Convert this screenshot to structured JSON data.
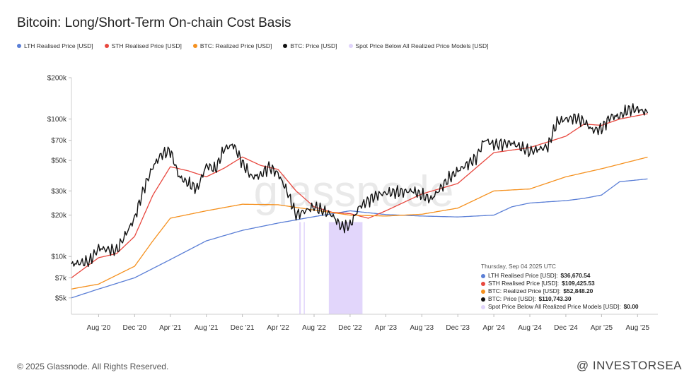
{
  "title": "Bitcoin: Long/Short-Term On-chain Cost Basis",
  "footer": "© 2025 Glassnode. All Rights Reserved.",
  "source_mark": "@ INVESTORSEA",
  "watermark": "glassnode",
  "colors": {
    "lth": "#5b7fd6",
    "sth": "#e8483f",
    "realized": "#f5911f",
    "price": "#111111",
    "spot_below": "#e0d4fb"
  },
  "tooltip": {
    "date": "Thursday, Sep 04 2025 UTC",
    "rows": [
      {
        "label": "LTH Realised Price [USD]:",
        "value": "$36,670.54",
        "color": "#5b7fd6"
      },
      {
        "label": "STH Realised Price [USD]:",
        "value": "$109,425.53",
        "color": "#e8483f"
      },
      {
        "label": "BTC: Realized Price [USD]:",
        "value": "$52,848.20",
        "color": "#f5911f"
      },
      {
        "label": "BTC: Price [USD]:",
        "value": "$110,743.30",
        "color": "#111111"
      },
      {
        "label": "Spot Price Below All Realized Price Models [USD]:",
        "value": "$0.00",
        "color": "#e0d4fb"
      }
    ]
  },
  "chart_data": {
    "type": "line",
    "title": "Bitcoin: Long/Short-Term On-chain Cost Basis",
    "y_scale": "log",
    "ylim": [
      3800,
      200000
    ],
    "y_ticks": [
      {
        "value": 5000,
        "label": "$5k"
      },
      {
        "value": 7000,
        "label": "$7k"
      },
      {
        "value": 10000,
        "label": "$10k"
      },
      {
        "value": 20000,
        "label": "$20k"
      },
      {
        "value": 30000,
        "label": "$30k"
      },
      {
        "value": 50000,
        "label": "$50k"
      },
      {
        "value": 70000,
        "label": "$70k"
      },
      {
        "value": 100000,
        "label": "$100k"
      },
      {
        "value": 200000,
        "label": "$200k"
      }
    ],
    "xlim": [
      "2020-05-01",
      "2025-09-10"
    ],
    "x_ticks": [
      {
        "date": "2020-08-01",
        "label": "Aug '20"
      },
      {
        "date": "2020-12-01",
        "label": "Dec '20"
      },
      {
        "date": "2021-04-01",
        "label": "Apr '21"
      },
      {
        "date": "2021-08-01",
        "label": "Aug '21"
      },
      {
        "date": "2021-12-01",
        "label": "Dec '21"
      },
      {
        "date": "2022-04-01",
        "label": "Apr '22"
      },
      {
        "date": "2022-08-01",
        "label": "Aug '22"
      },
      {
        "date": "2022-12-01",
        "label": "Dec '22"
      },
      {
        "date": "2023-04-01",
        "label": "Apr '23"
      },
      {
        "date": "2023-08-01",
        "label": "Aug '23"
      },
      {
        "date": "2023-12-01",
        "label": "Dec '23"
      },
      {
        "date": "2024-04-01",
        "label": "Apr '24"
      },
      {
        "date": "2024-08-01",
        "label": "Aug '24"
      },
      {
        "date": "2024-12-01",
        "label": "Dec '24"
      },
      {
        "date": "2025-04-01",
        "label": "Apr '25"
      },
      {
        "date": "2025-08-01",
        "label": "Aug '25"
      }
    ],
    "grid": false,
    "legend_position": "top-left",
    "series": [
      {
        "name": "LTH Realised Price [USD]",
        "color": "#5b7fd6",
        "points": [
          [
            "2020-05-01",
            5000
          ],
          [
            "2020-08-01",
            5800
          ],
          [
            "2020-12-01",
            7000
          ],
          [
            "2021-04-01",
            9500
          ],
          [
            "2021-08-01",
            13000
          ],
          [
            "2021-12-01",
            15500
          ],
          [
            "2022-04-01",
            17500
          ],
          [
            "2022-08-01",
            19500
          ],
          [
            "2022-12-01",
            21500
          ],
          [
            "2023-04-01",
            20200
          ],
          [
            "2023-08-01",
            19700
          ],
          [
            "2023-12-01",
            19400
          ],
          [
            "2024-04-01",
            20000
          ],
          [
            "2024-06-01",
            23000
          ],
          [
            "2024-08-01",
            24500
          ],
          [
            "2024-12-01",
            25500
          ],
          [
            "2025-02-01",
            26500
          ],
          [
            "2025-04-01",
            28000
          ],
          [
            "2025-06-01",
            35000
          ],
          [
            "2025-09-04",
            36670
          ]
        ]
      },
      {
        "name": "STH Realised Price [USD]",
        "color": "#e8483f",
        "points": [
          [
            "2020-05-01",
            7000
          ],
          [
            "2020-08-01",
            9800
          ],
          [
            "2020-10-01",
            10500
          ],
          [
            "2020-12-01",
            14000
          ],
          [
            "2021-02-01",
            28000
          ],
          [
            "2021-04-01",
            45000
          ],
          [
            "2021-06-01",
            42000
          ],
          [
            "2021-08-01",
            38000
          ],
          [
            "2021-10-01",
            44000
          ],
          [
            "2021-12-01",
            53000
          ],
          [
            "2022-02-01",
            46000
          ],
          [
            "2022-04-01",
            43000
          ],
          [
            "2022-06-01",
            30000
          ],
          [
            "2022-08-01",
            23000
          ],
          [
            "2022-10-01",
            21000
          ],
          [
            "2022-12-01",
            20500
          ],
          [
            "2023-02-01",
            19000
          ],
          [
            "2023-04-01",
            21500
          ],
          [
            "2023-08-01",
            28500
          ],
          [
            "2023-12-01",
            34000
          ],
          [
            "2024-04-01",
            57000
          ],
          [
            "2024-08-01",
            62000
          ],
          [
            "2024-12-01",
            75000
          ],
          [
            "2025-02-01",
            92000
          ],
          [
            "2025-04-01",
            90000
          ],
          [
            "2025-06-01",
            100000
          ],
          [
            "2025-09-04",
            109425
          ]
        ]
      },
      {
        "name": "BTC: Realized Price [USD]",
        "color": "#f5911f",
        "points": [
          [
            "2020-05-01",
            5800
          ],
          [
            "2020-08-01",
            6300
          ],
          [
            "2020-12-01",
            8500
          ],
          [
            "2021-02-01",
            13000
          ],
          [
            "2021-04-01",
            19000
          ],
          [
            "2021-08-01",
            21500
          ],
          [
            "2021-12-01",
            24000
          ],
          [
            "2022-04-01",
            23800
          ],
          [
            "2022-08-01",
            21800
          ],
          [
            "2022-12-01",
            20000
          ],
          [
            "2023-04-01",
            19700
          ],
          [
            "2023-08-01",
            20300
          ],
          [
            "2023-12-01",
            22500
          ],
          [
            "2024-04-01",
            30000
          ],
          [
            "2024-08-01",
            31000
          ],
          [
            "2024-12-01",
            38000
          ],
          [
            "2025-04-01",
            43500
          ],
          [
            "2025-09-04",
            52848
          ]
        ]
      },
      {
        "name": "BTC: Price [USD]",
        "color": "#111111",
        "points": [
          [
            "2020-05-01",
            8800
          ],
          [
            "2020-07-01",
            9200
          ],
          [
            "2020-08-01",
            11500
          ],
          [
            "2020-10-01",
            11000
          ],
          [
            "2020-12-01",
            19000
          ],
          [
            "2021-01-01",
            31000
          ],
          [
            "2021-02-01",
            45000
          ],
          [
            "2021-03-01",
            55000
          ],
          [
            "2021-04-01",
            59000
          ],
          [
            "2021-05-01",
            38000
          ],
          [
            "2021-06-01",
            34000
          ],
          [
            "2021-07-01",
            31000
          ],
          [
            "2021-08-01",
            46000
          ],
          [
            "2021-09-01",
            43000
          ],
          [
            "2021-10-01",
            61000
          ],
          [
            "2021-11-01",
            65000
          ],
          [
            "2021-12-01",
            48000
          ],
          [
            "2022-01-01",
            38000
          ],
          [
            "2022-02-01",
            39000
          ],
          [
            "2022-03-01",
            45000
          ],
          [
            "2022-04-01",
            40000
          ],
          [
            "2022-05-01",
            30000
          ],
          [
            "2022-06-01",
            20000
          ],
          [
            "2022-08-01",
            23000
          ],
          [
            "2022-10-01",
            20000
          ],
          [
            "2022-11-01",
            16500
          ],
          [
            "2022-12-01",
            16800
          ],
          [
            "2023-01-01",
            23000
          ],
          [
            "2023-03-01",
            28000
          ],
          [
            "2023-04-01",
            29000
          ],
          [
            "2023-07-01",
            30000
          ],
          [
            "2023-09-01",
            26000
          ],
          [
            "2023-11-01",
            37000
          ],
          [
            "2023-12-01",
            42000
          ],
          [
            "2024-02-01",
            52000
          ],
          [
            "2024-03-01",
            71000
          ],
          [
            "2024-04-01",
            65000
          ],
          [
            "2024-06-01",
            67000
          ],
          [
            "2024-08-01",
            58000
          ],
          [
            "2024-10-01",
            63000
          ],
          [
            "2024-11-01",
            95000
          ],
          [
            "2024-12-01",
            100000
          ],
          [
            "2025-01-01",
            102000
          ],
          [
            "2025-02-01",
            96000
          ],
          [
            "2025-03-01",
            83000
          ],
          [
            "2025-04-01",
            85000
          ],
          [
            "2025-05-01",
            104000
          ],
          [
            "2025-06-01",
            105000
          ],
          [
            "2025-07-01",
            117000
          ],
          [
            "2025-08-01",
            118000
          ],
          [
            "2025-09-04",
            110743
          ]
        ]
      },
      {
        "name": "Spot Price Below All Realized Price Models [USD]",
        "color": "#e0d4fb",
        "bands": [
          [
            "2022-06-12",
            "2022-06-17"
          ],
          [
            "2022-06-27",
            "2022-06-30"
          ],
          [
            "2022-09-20",
            "2023-01-12"
          ]
        ]
      }
    ]
  }
}
